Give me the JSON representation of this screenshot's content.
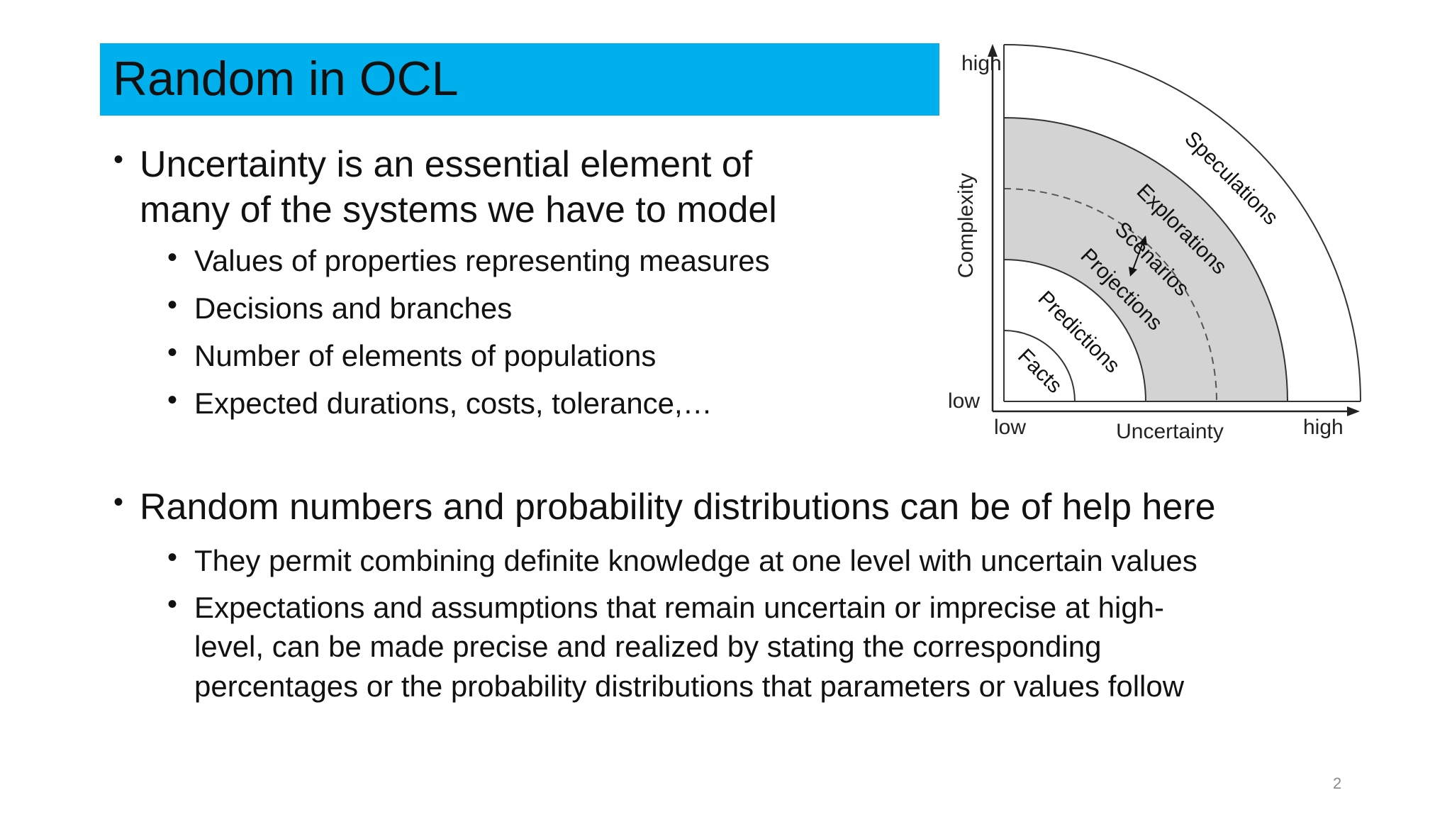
{
  "slide": {
    "title": "Random in OCL",
    "page_number": "2",
    "colors": {
      "title_bar": "#00B0EC",
      "band_fill": "#D3D3D3",
      "text": "#111111"
    }
  },
  "bullets": {
    "b1_line1": "Uncertainty is an essential element of",
    "b1_line2": "many of the systems we have to model",
    "b1_sub1": "Values of properties representing measures",
    "b1_sub2": "Decisions and branches",
    "b1_sub3": "Number of elements of populations",
    "b1_sub4": "Expected durations, costs, tolerance,…",
    "b2_line1": "Random numbers and probability distributions can be of help here",
    "b2_sub1": "They permit combining definite knowledge at one level with uncertain values",
    "b2_sub2_line1": "Expectations and assumptions that remain uncertain or imprecise at high-",
    "b2_sub2_line2": "level, can be made precise and realized by stating the corresponding",
    "b2_sub2_line3": "percentages or the probability distributions that parameters or values follow"
  },
  "diagram": {
    "y_axis_high": "high",
    "y_axis_low": "low",
    "y_axis_label": "Complexity",
    "x_axis_low": "low",
    "x_axis_label": "Uncertainty",
    "x_axis_high": "high",
    "regions": {
      "facts": "Facts",
      "predictions": "Predictions",
      "projections": "Projections",
      "scenarios": "Scenarios",
      "explorations": "Explorations",
      "speculations": "Speculations"
    }
  }
}
